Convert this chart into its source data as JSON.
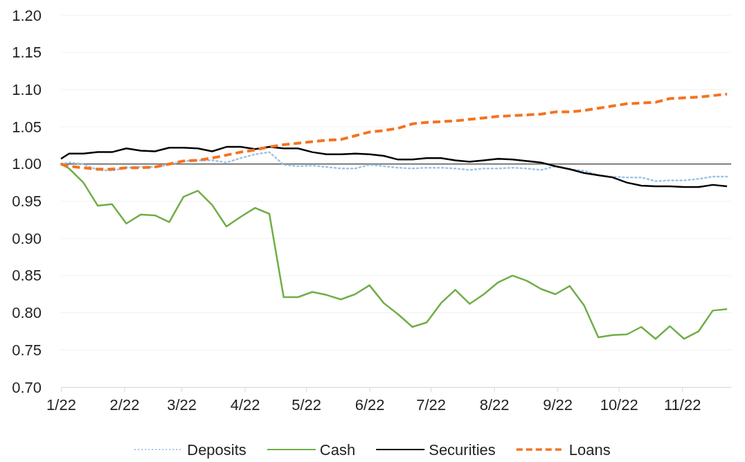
{
  "chart_data": {
    "type": "line",
    "x": [
      "2022-01-01",
      "2022-01-05",
      "2022-01-12",
      "2022-01-19",
      "2022-01-26",
      "2022-02-02",
      "2022-02-09",
      "2022-02-16",
      "2022-02-23",
      "2022-03-02",
      "2022-03-09",
      "2022-03-16",
      "2022-03-23",
      "2022-03-30",
      "2022-04-06",
      "2022-04-13",
      "2022-04-20",
      "2022-04-27",
      "2022-05-04",
      "2022-05-11",
      "2022-05-18",
      "2022-05-25",
      "2022-06-01",
      "2022-06-08",
      "2022-06-15",
      "2022-06-22",
      "2022-06-29",
      "2022-07-06",
      "2022-07-13",
      "2022-07-20",
      "2022-07-27",
      "2022-08-03",
      "2022-08-10",
      "2022-08-17",
      "2022-08-24",
      "2022-08-31",
      "2022-09-07",
      "2022-09-14",
      "2022-09-21",
      "2022-09-28",
      "2022-10-05",
      "2022-10-12",
      "2022-10-19",
      "2022-10-26",
      "2022-11-02",
      "2022-11-09",
      "2022-11-16",
      "2022-11-23"
    ],
    "series": [
      {
        "name": "Deposits",
        "color": "#9dc3e6",
        "line_style": "dotted",
        "values": [
          1.0,
          1.002,
          1.0,
          0.992,
          0.991,
          0.995,
          0.996,
          0.996,
          0.999,
          1.004,
          1.005,
          1.005,
          1.002,
          1.008,
          1.013,
          1.016,
          0.999,
          0.997,
          0.998,
          0.996,
          0.994,
          0.994,
          0.999,
          0.997,
          0.995,
          0.994,
          0.995,
          0.995,
          0.994,
          0.992,
          0.994,
          0.994,
          0.995,
          0.994,
          0.992,
          0.997,
          0.993,
          0.991,
          0.985,
          0.983,
          0.982,
          0.982,
          0.977,
          0.978,
          0.978,
          0.98,
          0.983,
          0.983
        ]
      },
      {
        "name": "Cash",
        "color": "#70ad47",
        "line_style": "solid",
        "values": [
          1.0,
          0.994,
          0.975,
          0.944,
          0.946,
          0.92,
          0.932,
          0.931,
          0.922,
          0.956,
          0.964,
          0.945,
          0.916,
          0.929,
          0.941,
          0.933,
          0.821,
          0.821,
          0.828,
          0.824,
          0.818,
          0.825,
          0.837,
          0.813,
          0.798,
          0.781,
          0.787,
          0.813,
          0.831,
          0.812,
          0.825,
          0.841,
          0.85,
          0.843,
          0.832,
          0.825,
          0.836,
          0.81,
          0.767,
          0.77,
          0.771,
          0.781,
          0.765,
          0.782,
          0.765,
          0.775,
          0.803,
          0.805
        ]
      },
      {
        "name": "Securities",
        "color": "#000000",
        "line_style": "solid",
        "values": [
          1.007,
          1.014,
          1.014,
          1.016,
          1.016,
          1.021,
          1.018,
          1.017,
          1.022,
          1.022,
          1.021,
          1.017,
          1.023,
          1.023,
          1.02,
          1.023,
          1.021,
          1.021,
          1.016,
          1.013,
          1.013,
          1.014,
          1.013,
          1.011,
          1.006,
          1.006,
          1.008,
          1.008,
          1.005,
          1.003,
          1.005,
          1.007,
          1.006,
          1.004,
          1.002,
          0.997,
          0.993,
          0.988,
          0.985,
          0.982,
          0.975,
          0.971,
          0.97,
          0.97,
          0.969,
          0.969,
          0.972,
          0.97
        ]
      },
      {
        "name": "Loans",
        "color": "#f4731f",
        "line_style": "dashed",
        "values": [
          1.0,
          0.997,
          0.995,
          0.993,
          0.993,
          0.995,
          0.995,
          0.996,
          1.0,
          1.004,
          1.005,
          1.008,
          1.012,
          1.016,
          1.019,
          1.023,
          1.026,
          1.028,
          1.03,
          1.032,
          1.033,
          1.038,
          1.043,
          1.045,
          1.048,
          1.054,
          1.056,
          1.057,
          1.058,
          1.06,
          1.062,
          1.064,
          1.065,
          1.066,
          1.067,
          1.07,
          1.07,
          1.072,
          1.075,
          1.078,
          1.081,
          1.082,
          1.083,
          1.088,
          1.089,
          1.09,
          1.092,
          1.094
        ]
      }
    ],
    "xlim": [
      "2022-01-01",
      "2022-11-25"
    ],
    "xticks": [
      {
        "value": "2022-01-01",
        "label": "1/22"
      },
      {
        "value": "2022-02-01",
        "label": "2/22"
      },
      {
        "value": "2022-03-01",
        "label": "3/22"
      },
      {
        "value": "2022-04-01",
        "label": "4/22"
      },
      {
        "value": "2022-05-01",
        "label": "5/22"
      },
      {
        "value": "2022-06-01",
        "label": "6/22"
      },
      {
        "value": "2022-07-01",
        "label": "7/22"
      },
      {
        "value": "2022-08-01",
        "label": "8/22"
      },
      {
        "value": "2022-09-01",
        "label": "9/22"
      },
      {
        "value": "2022-10-01",
        "label": "10/22"
      },
      {
        "value": "2022-11-01",
        "label": "11/22"
      }
    ],
    "ylim": [
      0.7,
      1.2
    ],
    "yticks": [
      {
        "value": 0.7,
        "label": "0.70"
      },
      {
        "value": 0.75,
        "label": "0.75"
      },
      {
        "value": 0.8,
        "label": "0.80"
      },
      {
        "value": 0.85,
        "label": "0.85"
      },
      {
        "value": 0.9,
        "label": "0.90"
      },
      {
        "value": 0.95,
        "label": "0.95"
      },
      {
        "value": 1.0,
        "label": "1.00"
      },
      {
        "value": 1.05,
        "label": "1.05"
      },
      {
        "value": 1.1,
        "label": "1.10"
      },
      {
        "value": 1.15,
        "label": "1.15"
      },
      {
        "value": 1.2,
        "label": "1.20"
      }
    ],
    "ref_lines": [
      {
        "axis": "y",
        "value": 1.0,
        "color": "#595959",
        "line_style": "solid"
      }
    ],
    "grid": "y",
    "legend": "bottom",
    "marker": "none"
  }
}
